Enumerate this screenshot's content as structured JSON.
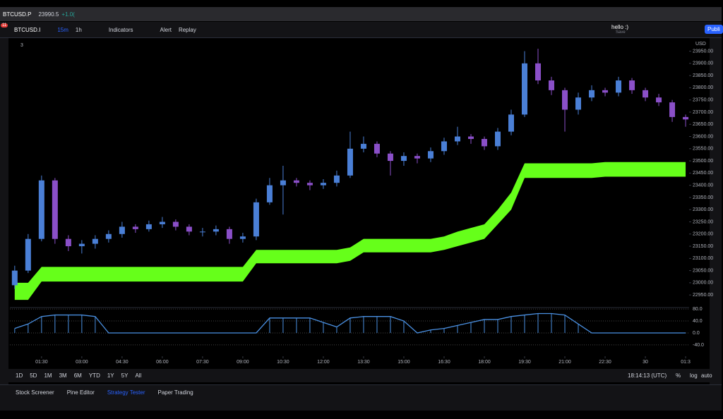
{
  "tabs": {
    "symbol": "BTCUSD.P",
    "price": "23990.5",
    "change": "+1.0("
  },
  "toolbar": {
    "badge": "11",
    "symbol": "BTCUSD.I",
    "intervals": [
      "15m",
      "1h"
    ],
    "indicators": "Indicators",
    "alert": "Alert",
    "replay": "Replay",
    "user": "hello :)",
    "save": "Save",
    "publish": "Publi"
  },
  "chart_data": {
    "type": "candlestick",
    "currency": "USD",
    "indicator_count": "3",
    "up_color": "#4a7fd6",
    "down_color": "#8a4fc8",
    "x": [
      0.5,
      1,
      1.5,
      2,
      2.5,
      3,
      3.5,
      4,
      4.5,
      5,
      5.5,
      6,
      6.5,
      7,
      7.5,
      8,
      8.5,
      9,
      9.5,
      10,
      10.5,
      11,
      11.5,
      12,
      12.5,
      13,
      13.5,
      14,
      14.5,
      15,
      15.5,
      16,
      16.5,
      17,
      17.5,
      18,
      18.5,
      19,
      19.5,
      20,
      20.5,
      21,
      21.5,
      22,
      22.5,
      23,
      23.5,
      24,
      24.5,
      25,
      25.5
    ],
    "xlim": [
      0.32,
      25.63
    ],
    "xticks": [
      {
        "value": 1.5,
        "label": "01:30"
      },
      {
        "value": 3,
        "label": "03:00"
      },
      {
        "value": 4.5,
        "label": "04:30"
      },
      {
        "value": 6,
        "label": "06:00"
      },
      {
        "value": 7.5,
        "label": "07:30"
      },
      {
        "value": 9,
        "label": "09:00"
      },
      {
        "value": 10.5,
        "label": "10:30"
      },
      {
        "value": 12,
        "label": "12:00"
      },
      {
        "value": 13.5,
        "label": "13:30"
      },
      {
        "value": 15,
        "label": "15:00"
      },
      {
        "value": 16.5,
        "label": "16:30"
      },
      {
        "value": 18,
        "label": "18:00"
      },
      {
        "value": 19.5,
        "label": "19:30"
      },
      {
        "value": 21,
        "label": "21:00"
      },
      {
        "value": 22.5,
        "label": "22:30"
      },
      {
        "value": 24,
        "label": "30"
      },
      {
        "value": 25.5,
        "label": "01:3"
      }
    ],
    "ylim": [
      22910,
      23995
    ],
    "yticks": [
      {
        "value": 22950,
        "label": "22950.00"
      },
      {
        "value": 23000,
        "label": "23000.00"
      },
      {
        "value": 23050,
        "label": "23050.00"
      },
      {
        "value": 23100,
        "label": "23100.00"
      },
      {
        "value": 23150,
        "label": "23150.00"
      },
      {
        "value": 23200,
        "label": "23200.00"
      },
      {
        "value": 23250,
        "label": "23250.00"
      },
      {
        "value": 23300,
        "label": "23300.00"
      },
      {
        "value": 23350,
        "label": "23350.00"
      },
      {
        "value": 23400,
        "label": "23400.00"
      },
      {
        "value": 23450,
        "label": "23450.00"
      },
      {
        "value": 23500,
        "label": "23500.00"
      },
      {
        "value": 23550,
        "label": "23550.00"
      },
      {
        "value": 23600,
        "label": "23600.00"
      },
      {
        "value": 23650,
        "label": "23650.00"
      },
      {
        "value": 23700,
        "label": "23700.00"
      },
      {
        "value": 23750,
        "label": "23750.00"
      },
      {
        "value": 23800,
        "label": "23800.00"
      },
      {
        "value": 23850,
        "label": "23850.00"
      },
      {
        "value": 23900,
        "label": "23900.00"
      },
      {
        "value": 23950,
        "label": "23950.00"
      }
    ],
    "open": [
      22990,
      23050,
      23180,
      23420,
      23180,
      23150,
      23160,
      23180,
      23200,
      23230,
      23220,
      23240,
      23250,
      23230,
      23210,
      23210,
      23220,
      23180,
      23190,
      23330,
      23400,
      23420,
      23410,
      23400,
      23410,
      23440,
      23550,
      23570,
      23530,
      23500,
      23520,
      23510,
      23540,
      23580,
      23600,
      23590,
      23560,
      23620,
      23690,
      23900,
      23830,
      23790,
      23710,
      23760,
      23790,
      23780,
      23830,
      23790,
      23760,
      23740,
      23680
    ],
    "high": [
      23070,
      23200,
      23440,
      23430,
      23195,
      23175,
      23195,
      23215,
      23250,
      23240,
      23255,
      23270,
      23260,
      23240,
      23225,
      23235,
      23230,
      23205,
      23345,
      23430,
      23480,
      23430,
      23420,
      23425,
      23460,
      23620,
      23600,
      23580,
      23540,
      23535,
      23530,
      23555,
      23595,
      23640,
      23610,
      23600,
      23635,
      23710,
      23950,
      23960,
      23845,
      23800,
      23780,
      23810,
      23800,
      23845,
      23840,
      23800,
      23775,
      23750,
      23690
    ],
    "low": [
      22975,
      23040,
      23170,
      23160,
      23130,
      23120,
      23140,
      23165,
      23185,
      23205,
      23210,
      23225,
      23215,
      23195,
      23190,
      23195,
      23160,
      23165,
      23175,
      23320,
      23280,
      23395,
      23380,
      23385,
      23395,
      23430,
      23535,
      23515,
      23440,
      23480,
      23490,
      23495,
      23525,
      23565,
      23570,
      23545,
      23545,
      23605,
      23680,
      23815,
      23770,
      23620,
      23690,
      23745,
      23765,
      23765,
      23775,
      23745,
      23725,
      23660,
      23640
    ],
    "close": [
      23050,
      23180,
      23420,
      23180,
      23150,
      23160,
      23180,
      23200,
      23230,
      23220,
      23240,
      23250,
      23230,
      23210,
      23210,
      23220,
      23180,
      23190,
      23330,
      23400,
      23420,
      23410,
      23400,
      23410,
      23440,
      23550,
      23570,
      23530,
      23500,
      23520,
      23510,
      23540,
      23580,
      23600,
      23590,
      23560,
      23620,
      23690,
      23900,
      23830,
      23790,
      23710,
      23760,
      23790,
      23780,
      23830,
      23790,
      23760,
      23740,
      23680,
      23670
    ],
    "band": {
      "color": "#66ff1a",
      "upper": [
        23000,
        23000,
        23065,
        23065,
        23065,
        23065,
        23065,
        23065,
        23065,
        23065,
        23065,
        23065,
        23065,
        23065,
        23065,
        23065,
        23065,
        23065,
        23135,
        23135,
        23135,
        23135,
        23135,
        23135,
        23135,
        23145,
        23180,
        23180,
        23180,
        23180,
        23180,
        23180,
        23190,
        23210,
        23225,
        23240,
        23300,
        23370,
        23490,
        23490,
        23490,
        23490,
        23490,
        23490,
        23495,
        23495,
        23495,
        23495,
        23495,
        23495,
        23495
      ],
      "lower": [
        22930,
        22930,
        23005,
        23005,
        23005,
        23005,
        23005,
        23005,
        23005,
        23005,
        23005,
        23005,
        23005,
        23005,
        23005,
        23005,
        23005,
        23005,
        23080,
        23080,
        23080,
        23080,
        23080,
        23080,
        23080,
        23090,
        23125,
        23125,
        23125,
        23125,
        23125,
        23125,
        23135,
        23150,
        23165,
        23180,
        23240,
        23300,
        23430,
        23430,
        23430,
        23430,
        23430,
        23430,
        23435,
        23435,
        23435,
        23435,
        23435,
        23435,
        23435
      ]
    },
    "oscillator": {
      "color": "#4a90e2",
      "ylim": [
        -78,
        85
      ],
      "yticks": [
        {
          "value": 80,
          "label": "80.0"
        },
        {
          "value": 40,
          "label": "40.0"
        },
        {
          "value": 0,
          "label": "0.0"
        },
        {
          "value": -40,
          "label": "-40.0"
        }
      ],
      "values": [
        15,
        30,
        55,
        60,
        60,
        60,
        55,
        0,
        0,
        0,
        0,
        0,
        0,
        0,
        0,
        0,
        0,
        0,
        0,
        50,
        50,
        50,
        50,
        35,
        20,
        50,
        55,
        55,
        55,
        40,
        0,
        10,
        15,
        25,
        35,
        45,
        45,
        55,
        60,
        65,
        65,
        60,
        30,
        0,
        0,
        0,
        0,
        0,
        0,
        0,
        0
      ]
    }
  },
  "range_bar": {
    "ranges": [
      "1D",
      "5D",
      "1M",
      "3M",
      "6M",
      "YTD",
      "1Y",
      "5Y",
      "All"
    ],
    "clock": "18:14:13 (UTC)",
    "options": [
      "%",
      "log",
      "auto"
    ]
  },
  "panels": {
    "tabs": [
      "Stock Screener",
      "Pine Editor",
      "Strategy Tester",
      "Paper Trading"
    ]
  }
}
